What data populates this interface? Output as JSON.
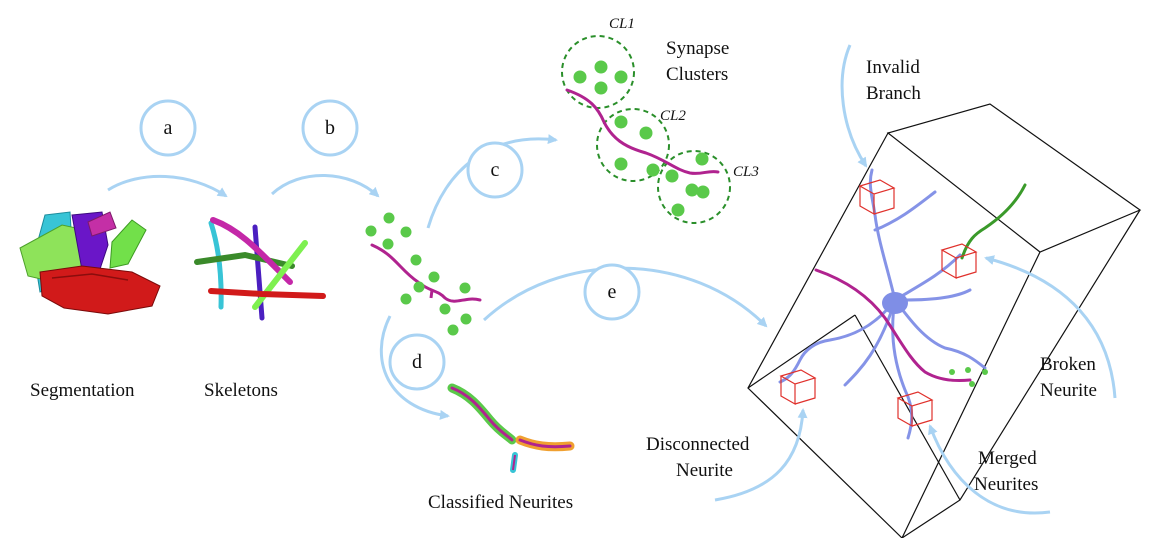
{
  "steps": {
    "a": "a",
    "b": "b",
    "c": "c",
    "d": "d",
    "e": "e"
  },
  "labels": {
    "segmentation": "Segmentation",
    "skeletons": "Skeletons",
    "classified_neurites": "Classified Neurites",
    "synapse_clusters_line1": "Synapse",
    "synapse_clusters_line2": "Clusters",
    "invalid_branch_line1": "Invalid",
    "invalid_branch_line2": "Branch",
    "broken_neurite_line1": "Broken",
    "broken_neurite_line2": "Neurite",
    "merged_neurites_line1": "Merged",
    "merged_neurites_line2": "Neurites",
    "disconnected_neurite_line1": "Disconnected",
    "disconnected_neurite_line2": "Neurite"
  },
  "clusters": {
    "cl1": "CL1",
    "cl2": "CL2",
    "cl3": "CL3"
  },
  "colors": {
    "arrow": "#a9d3f3",
    "synapse": "#5ac94a",
    "neurite_magenta": "#b0238f",
    "neurite_blue": "#7f8ee6",
    "box_red": "#e0312c",
    "cluster_ring": "#2a8f2a"
  }
}
